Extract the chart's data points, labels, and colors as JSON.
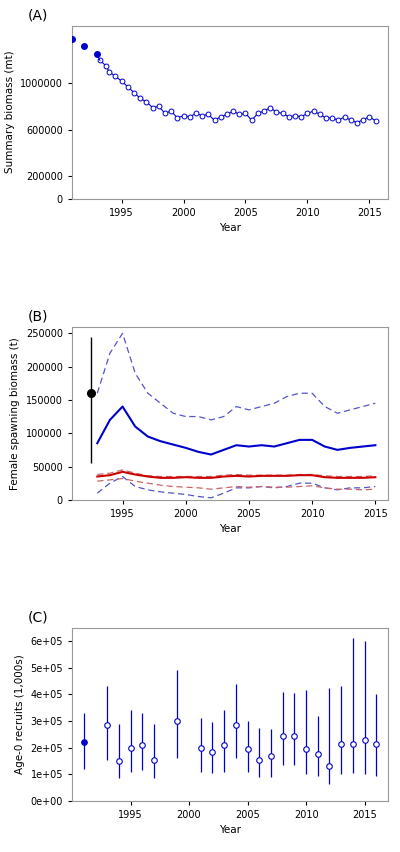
{
  "panel_A": {
    "title": "(A)",
    "ylabel": "Summary biomass (mt)",
    "xlabel": "Year",
    "solid_years": [
      1991,
      1992,
      1993
    ],
    "solid_values": [
      1380000,
      1320000,
      1250000
    ],
    "open_years": [
      1993.25,
      1993.75,
      1994,
      1994.5,
      1995,
      1995.5,
      1996,
      1996.5,
      1997,
      1997.5,
      1998,
      1998.5,
      1999,
      1999.5,
      2000,
      2000.5,
      2001,
      2001.5,
      2002,
      2002.5,
      2003,
      2003.5,
      2004,
      2004.5,
      2005,
      2005.5,
      2006,
      2006.5,
      2007,
      2007.5,
      2008,
      2008.5,
      2009,
      2009.5,
      2010,
      2010.5,
      2011,
      2011.5,
      2012,
      2012.5,
      2013,
      2013.5,
      2014,
      2014.5,
      2015,
      2015.5
    ],
    "open_values": [
      1200000,
      1150000,
      1100000,
      1060000,
      1020000,
      970000,
      920000,
      870000,
      840000,
      790000,
      800000,
      740000,
      760000,
      700000,
      720000,
      710000,
      740000,
      720000,
      730000,
      680000,
      710000,
      730000,
      760000,
      730000,
      740000,
      680000,
      740000,
      760000,
      790000,
      750000,
      740000,
      710000,
      720000,
      710000,
      740000,
      760000,
      730000,
      700000,
      700000,
      680000,
      710000,
      680000,
      660000,
      685000,
      710000,
      675000
    ],
    "hline_y": 0,
    "ylim": [
      0,
      1500000
    ],
    "xlim": [
      1991,
      2016.5
    ],
    "yticks": [
      0,
      200000,
      600000,
      1000000
    ],
    "xticks": [
      1995,
      2000,
      2005,
      2010,
      2015
    ]
  },
  "panel_B": {
    "title": "(B)",
    "ylabel": "Female spawning biomass (t)",
    "xlabel": "Year",
    "years": [
      1993,
      1994,
      1995,
      1996,
      1997,
      1998,
      1999,
      2000,
      2001,
      2002,
      2003,
      2004,
      2005,
      2006,
      2007,
      2008,
      2009,
      2010,
      2011,
      2012,
      2013,
      2014,
      2015
    ],
    "blue_solid": [
      85000,
      120000,
      140000,
      110000,
      95000,
      88000,
      83000,
      78000,
      72000,
      68000,
      75000,
      82000,
      80000,
      82000,
      80000,
      85000,
      90000,
      90000,
      80000,
      75000,
      78000,
      80000,
      82000
    ],
    "blue_upper": [
      160000,
      220000,
      250000,
      190000,
      160000,
      145000,
      130000,
      125000,
      125000,
      120000,
      125000,
      140000,
      135000,
      140000,
      145000,
      155000,
      160000,
      160000,
      140000,
      130000,
      135000,
      140000,
      145000
    ],
    "blue_lower": [
      10000,
      25000,
      35000,
      20000,
      15000,
      12000,
      10000,
      8000,
      5000,
      3000,
      10000,
      18000,
      18000,
      20000,
      18000,
      20000,
      25000,
      25000,
      18000,
      15000,
      18000,
      18000,
      20000
    ],
    "red_solid": [
      35000,
      37000,
      42000,
      38000,
      35000,
      33000,
      33000,
      34000,
      33000,
      33000,
      35000,
      36000,
      35000,
      36000,
      36000,
      36000,
      37000,
      37000,
      34000,
      33000,
      33000,
      33000,
      34000
    ],
    "red_upper": [
      38000,
      40000,
      45000,
      40000,
      36000,
      35000,
      35000,
      35000,
      35000,
      35000,
      37000,
      38000,
      37000,
      37000,
      37000,
      37000,
      38000,
      38000,
      36000,
      35000,
      35000,
      35000,
      36000
    ],
    "red_lower": [
      28000,
      30000,
      32000,
      28000,
      25000,
      22000,
      20000,
      19000,
      18000,
      16000,
      18000,
      20000,
      19000,
      20000,
      19000,
      19000,
      20000,
      21000,
      18000,
      16000,
      16000,
      15000,
      16000
    ],
    "ref_point_year": 1992.5,
    "ref_point_value": 160000,
    "ref_point_upper": 245000,
    "ref_point_lower": 55000,
    "ylim": [
      0,
      260000
    ],
    "xlim": [
      1991,
      2016
    ],
    "yticks": [
      0,
      50000,
      100000,
      150000,
      200000,
      250000
    ],
    "xticks": [
      1995,
      2000,
      2005,
      2010,
      2015
    ]
  },
  "panel_C": {
    "title": "(C)",
    "ylabel": "Age-0 recruits (1,000s)",
    "xlabel": "Year",
    "years": [
      1991,
      1993,
      1994,
      1995,
      1996,
      1997,
      1999,
      2001,
      2002,
      2003,
      2004,
      2005,
      2006,
      2007,
      2008,
      2009,
      2010,
      2011,
      2012,
      2013,
      2014,
      2015,
      2016
    ],
    "values": [
      220000,
      285000,
      150000,
      200000,
      210000,
      155000,
      300000,
      200000,
      185000,
      210000,
      285000,
      195000,
      155000,
      170000,
      245000,
      245000,
      195000,
      175000,
      130000,
      215000,
      215000,
      230000,
      215000
    ],
    "upper": [
      330000,
      430000,
      290000,
      340000,
      330000,
      290000,
      490000,
      310000,
      295000,
      340000,
      440000,
      300000,
      275000,
      270000,
      410000,
      405000,
      415000,
      320000,
      425000,
      430000,
      610000,
      600000,
      400000
    ],
    "lower": [
      120000,
      155000,
      85000,
      110000,
      115000,
      85000,
      160000,
      110000,
      105000,
      110000,
      160000,
      110000,
      90000,
      90000,
      135000,
      135000,
      100000,
      95000,
      65000,
      100000,
      105000,
      100000,
      95000
    ],
    "solid_year": 1991,
    "hline_y": 0,
    "ylim": [
      0,
      650000
    ],
    "xlim": [
      1990,
      2017
    ],
    "yticks_labels": [
      "0e+00",
      "1e+05",
      "2e+05",
      "3e+05",
      "4e+05",
      "5e+05",
      "6e+05"
    ],
    "yticks": [
      0,
      100000,
      200000,
      300000,
      400000,
      500000,
      600000
    ],
    "xticks": [
      1995,
      2000,
      2005,
      2010,
      2015
    ]
  },
  "colors": {
    "blue": "#0000CC",
    "blue_dashed": "#5555CC",
    "red": "#CC0000",
    "red_dashed": "#CC6666",
    "black": "#000000",
    "gray_line": "#BBBBBB",
    "axis_border": "#999999"
  },
  "figsize": [
    4.0,
    8.52
  ],
  "dpi": 100
}
